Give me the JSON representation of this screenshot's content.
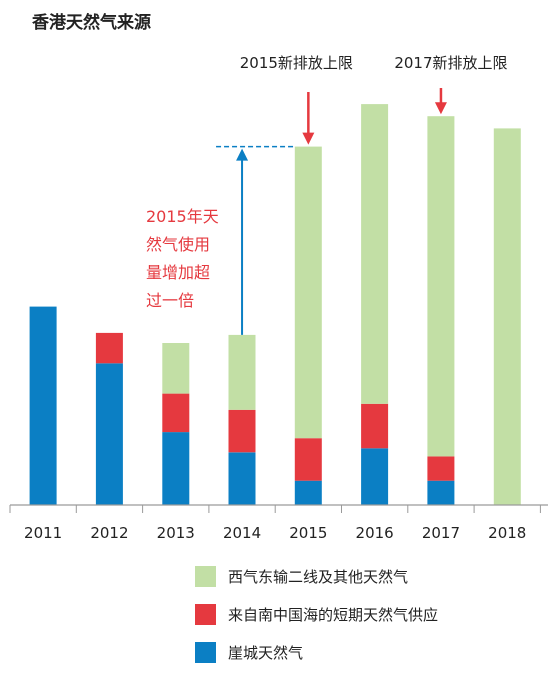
{
  "chart_data": {
    "type": "bar",
    "stacked": true,
    "title": "香港天然气来源",
    "xlabel": "",
    "ylabel": "",
    "categories": [
      "2011",
      "2012",
      "2013",
      "2014",
      "2015",
      "2016",
      "2017",
      "2018"
    ],
    "ylim": [
      0,
      100
    ],
    "grid": false,
    "legend_position": "bottom",
    "series": [
      {
        "name": "崖城天然气",
        "color": "#0b7fc4",
        "values": [
          49,
          35,
          18,
          13,
          6,
          14,
          6,
          0
        ]
      },
      {
        "name": "来自南中国海的短期天然气供应",
        "color": "#e5393f",
        "values": [
          0,
          7.5,
          9.5,
          10.5,
          10.5,
          11,
          6,
          0
        ]
      },
      {
        "name": "西气东输二线及其他天然气",
        "color": "#c2dfa5",
        "values": [
          0,
          0,
          12.5,
          18.5,
          72,
          74,
          84,
          93
        ]
      }
    ],
    "annotations": [
      {
        "text": "2015新排放上限",
        "target": "2015",
        "color": "#e5393f"
      },
      {
        "text": "2017新排放上限",
        "target": "2017",
        "color": "#e5393f"
      },
      {
        "text_lines": [
          "2015年天",
          "然气使用",
          "量增加超",
          "过一倍"
        ],
        "color": "#e5393f"
      }
    ]
  }
}
